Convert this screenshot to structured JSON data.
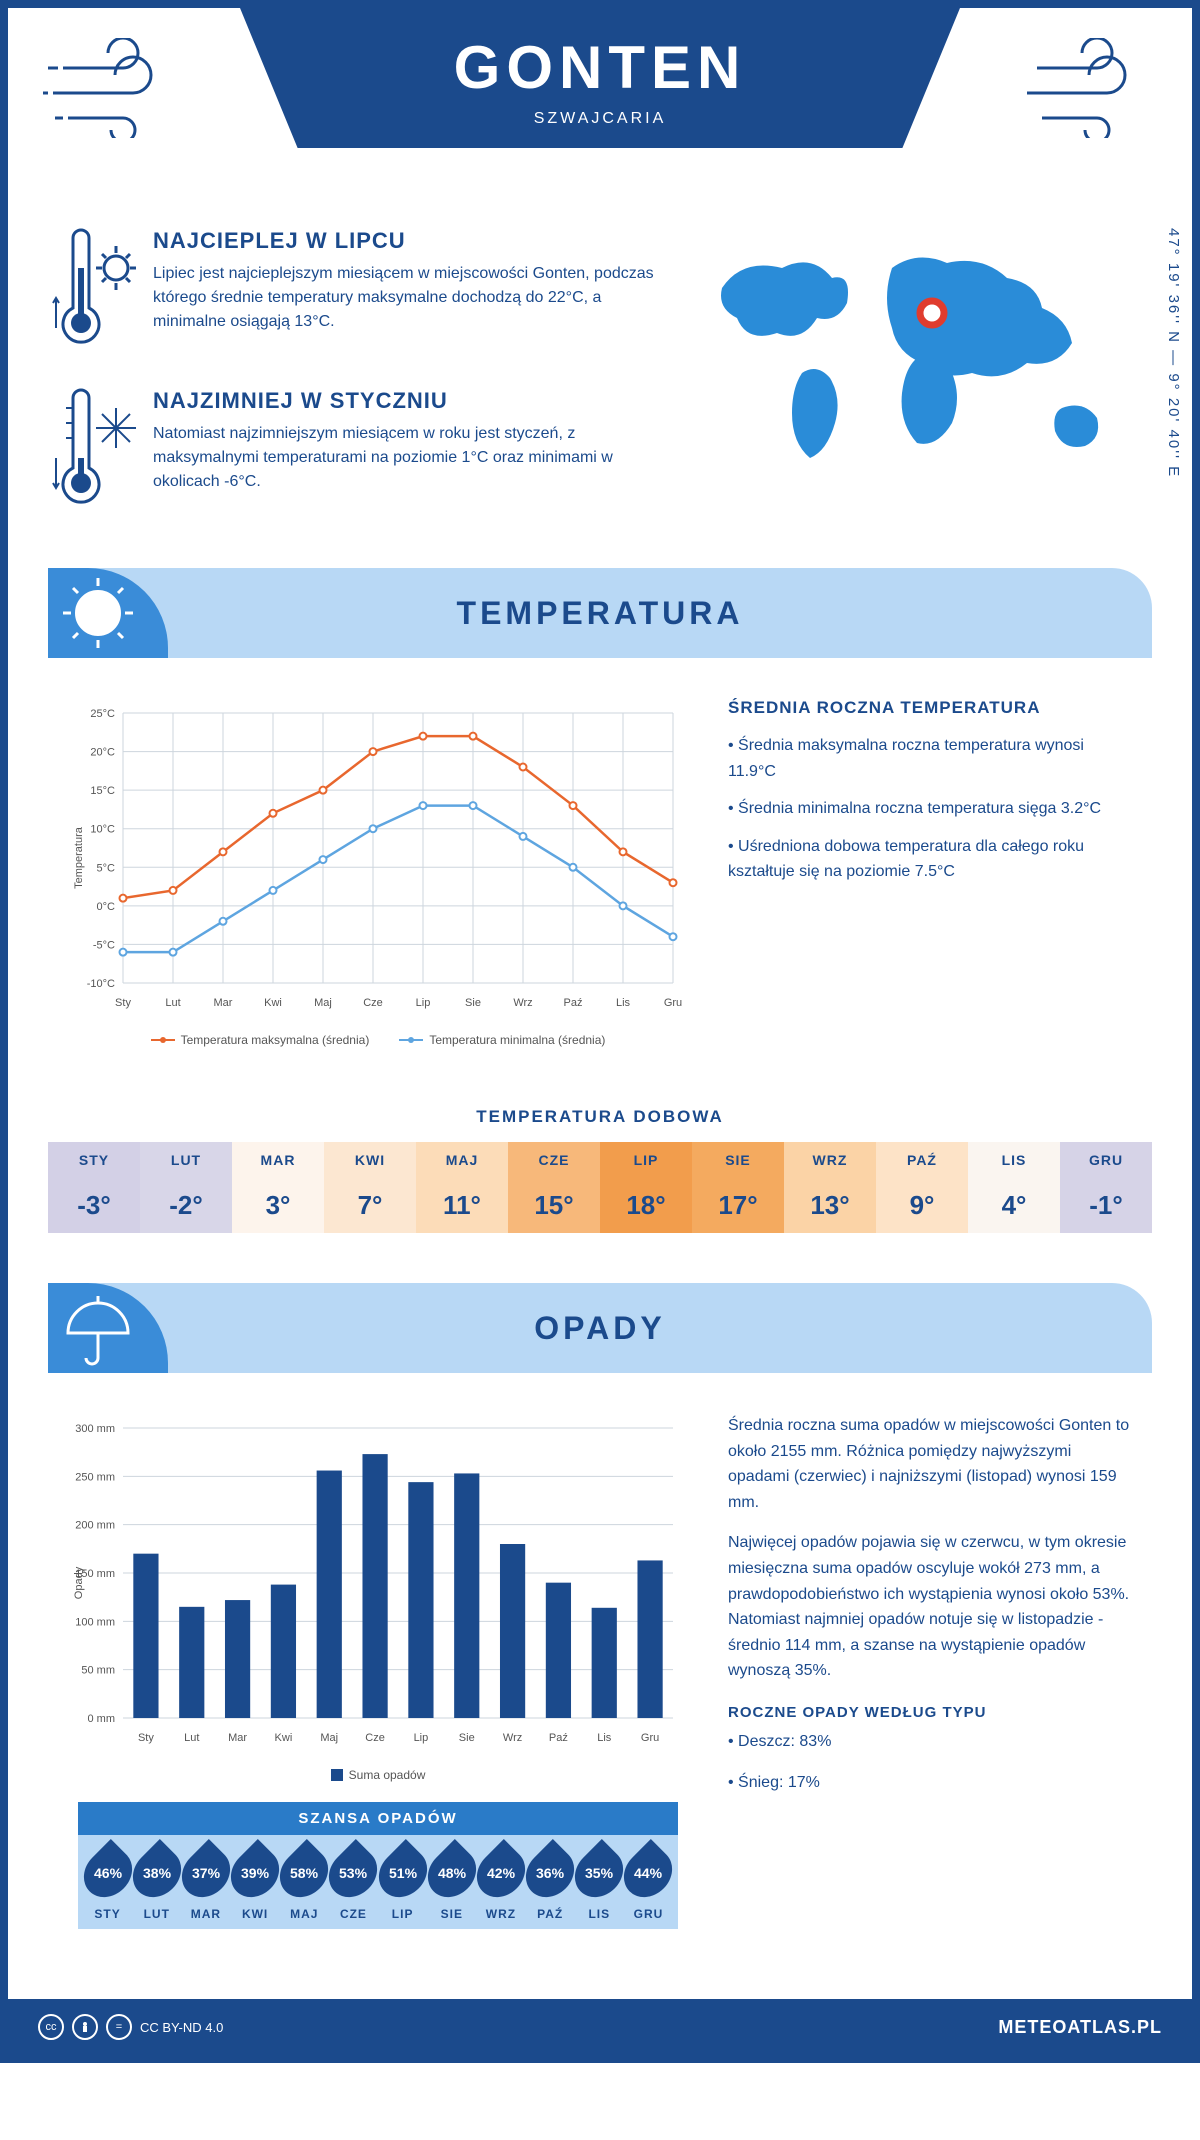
{
  "header": {
    "title": "GONTEN",
    "subtitle": "SZWAJCARIA"
  },
  "coordinates": "47° 19' 36'' N — 9° 20' 40'' E",
  "intro": {
    "hot": {
      "title": "NAJCIEPLEJ W LIPCU",
      "text": "Lipiec jest najcieplejszym miesiącem w miejscowości Gonten, podczas którego średnie temperatury maksymalne dochodzą do 22°C, a minimalne osiągają 13°C."
    },
    "cold": {
      "title": "NAJZIMNIEJ W STYCZNIU",
      "text": "Natomiast najzimniejszym miesiącem w roku jest styczeń, z maksymalnymi temperaturami na poziomie 1°C oraz minimami w okolicach -6°C."
    }
  },
  "colors": {
    "primary": "#1b4a8c",
    "lightblue": "#b8d8f5",
    "midblue": "#3a8cd8",
    "maxline": "#e8672e",
    "minline": "#5ea5e0",
    "grid": "#cdd5dd",
    "bar": "#1b4a8c",
    "marker": "#e03c2e"
  },
  "months_short": [
    "Sty",
    "Lut",
    "Mar",
    "Kwi",
    "Maj",
    "Cze",
    "Lip",
    "Sie",
    "Wrz",
    "Paź",
    "Lis",
    "Gru"
  ],
  "months_upper": [
    "STY",
    "LUT",
    "MAR",
    "KWI",
    "MAJ",
    "CZE",
    "LIP",
    "SIE",
    "WRZ",
    "PAŹ",
    "LIS",
    "GRU"
  ],
  "temperature": {
    "section_title": "TEMPERATURA",
    "chart": {
      "type": "line",
      "ylabel": "Temperatura",
      "ylim": [
        -10,
        25
      ],
      "ytick_step": 5,
      "max_series": [
        1,
        2,
        7,
        12,
        15,
        20,
        22,
        22,
        18,
        13,
        7,
        3
      ],
      "min_series": [
        -6,
        -6,
        -2,
        2,
        6,
        10,
        13,
        13,
        9,
        5,
        0,
        -4
      ],
      "max_color": "#e8672e",
      "min_color": "#5ea5e0",
      "legend_max": "Temperatura maksymalna (średnia)",
      "legend_min": "Temperatura minimalna (średnia)",
      "background": "#ffffff",
      "grid_color": "#cdd5dd"
    },
    "info": {
      "title": "ŚREDNIA ROCZNA TEMPERATURA",
      "p1": "• Średnia maksymalna roczna temperatura wynosi 11.9°C",
      "p2": "• Średnia minimalna roczna temperatura sięga 3.2°C",
      "p3": "• Uśredniona dobowa temperatura dla całego roku kształtuje się na poziomie 7.5°C"
    },
    "daily": {
      "title": "TEMPERATURA DOBOWA",
      "values": [
        "-3°",
        "-2°",
        "3°",
        "7°",
        "11°",
        "15°",
        "18°",
        "17°",
        "13°",
        "9°",
        "4°",
        "-1°"
      ],
      "cell_colors": [
        "#d3d0e6",
        "#d8d6e8",
        "#fdf4ec",
        "#fce7d1",
        "#fcdcb8",
        "#f7b87a",
        "#f29d4c",
        "#f4aa5f",
        "#fbd3a6",
        "#fde3c7",
        "#faf5f0",
        "#d6d3e7"
      ]
    }
  },
  "precipitation": {
    "section_title": "OPADY",
    "chart": {
      "type": "bar",
      "ylabel": "Opady",
      "ylim": [
        0,
        300
      ],
      "ytick_step": 50,
      "values": [
        170,
        115,
        122,
        138,
        256,
        273,
        244,
        253,
        180,
        140,
        114,
        163
      ],
      "bar_color": "#1b4a8c",
      "legend": "Suma opadów",
      "background": "#ffffff",
      "grid_color": "#cdd5dd",
      "bar_width": 0.55
    },
    "text": {
      "p1": "Średnia roczna suma opadów w miejscowości Gonten to około 2155 mm. Różnica pomiędzy najwyższymi opadami (czerwiec) i najniższymi (listopad) wynosi 159 mm.",
      "p2": "Najwięcej opadów pojawia się w czerwcu, w tym okresie miesięczna suma opadów oscyluje wokół 273 mm, a prawdopodobieństwo ich wystąpienia wynosi około 53%. Natomiast najmniej opadów notuje się w listopadzie - średnio 114 mm, a szanse na wystąpienie opadów wynoszą 35%."
    },
    "by_type": {
      "title": "ROCZNE OPADY WEDŁUG TYPU",
      "rain": "• Deszcz: 83%",
      "snow": "• Śnieg: 17%"
    },
    "chance": {
      "title": "SZANSA OPADÓW",
      "values": [
        "46%",
        "38%",
        "37%",
        "39%",
        "58%",
        "53%",
        "51%",
        "48%",
        "42%",
        "36%",
        "35%",
        "44%"
      ]
    }
  },
  "footer": {
    "license": "CC BY-ND 4.0",
    "site": "METEOATLAS.PL"
  }
}
